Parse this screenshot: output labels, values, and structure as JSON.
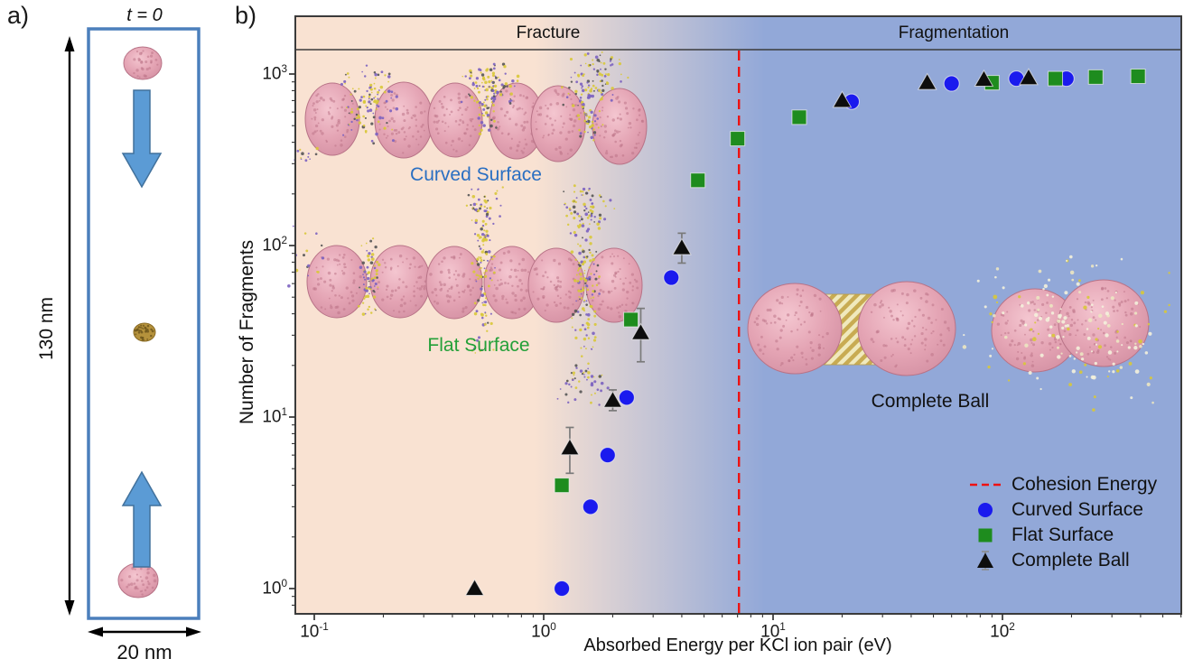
{
  "panel_a": {
    "label": "a)",
    "time_label": "t = 0",
    "height_label": "130 nm",
    "width_label": "20 nm"
  },
  "panel_b": {
    "label": "b)",
    "regions": {
      "fracture": "Fracture",
      "fragmentation": "Fragmentation"
    },
    "annotations": {
      "curved": {
        "text": "Curved Surface",
        "color": "#2a6fc2"
      },
      "flat": {
        "text": "Flat Surface",
        "color": "#23a038"
      },
      "ball": {
        "text": "Complete Ball",
        "color": "#111111"
      }
    }
  },
  "legend": {
    "items": [
      {
        "label": "Cohesion Energy",
        "marker": "dashed-line",
        "color": "#ee1111"
      },
      {
        "label": "Curved Surface",
        "marker": "circle",
        "color": "#1a1aee"
      },
      {
        "label": "Flat Surface",
        "marker": "square",
        "color": "#1e8c1e"
      },
      {
        "label": "Complete Ball",
        "marker": "triangle",
        "color": "#0d0d0d"
      }
    ]
  },
  "chart_data": {
    "type": "scatter",
    "x_scale": "log",
    "y_scale": "log",
    "xlabel": "Absorbed Energy per KCl ion pair (eV)",
    "ylabel": "Number of Fragments",
    "xlim": [
      0.083,
      600
    ],
    "ylim": [
      0.75,
      1390
    ],
    "x_tick_exponents": [
      -1,
      0,
      1,
      2
    ],
    "y_tick_exponents": [
      0,
      1,
      2,
      3
    ],
    "grid": false,
    "legend_position": "lower right",
    "regions": [
      {
        "label": "Fracture",
        "side": "left",
        "color": "#f9e2d2"
      },
      {
        "label": "Fragmentation",
        "side": "right",
        "color": "#92a8d8"
      }
    ],
    "cohesion_line": {
      "x": 7.1,
      "style": "dashed",
      "color": "#ee1111",
      "label": "Cohesion Energy"
    },
    "series": [
      {
        "name": "Curved Surface",
        "marker": "circle",
        "color": "#1a1aee",
        "points": [
          [
            1.2,
            1
          ],
          [
            1.6,
            3
          ],
          [
            1.9,
            6
          ],
          [
            2.3,
            13
          ],
          [
            3.6,
            65
          ],
          [
            22,
            690
          ],
          [
            60,
            880
          ],
          [
            115,
            940
          ],
          [
            190,
            940
          ]
        ]
      },
      {
        "name": "Flat Surface",
        "marker": "square",
        "color": "#1e8c1e",
        "points": [
          [
            1.2,
            4
          ],
          [
            2.4,
            37
          ],
          [
            4.7,
            240
          ],
          [
            7.0,
            420
          ],
          [
            13,
            560
          ],
          [
            90,
            890
          ],
          [
            170,
            940
          ],
          [
            255,
            960
          ],
          [
            390,
            970
          ]
        ]
      },
      {
        "name": "Complete Ball",
        "marker": "triangle",
        "color": "#0d0d0d",
        "points": [
          [
            0.5,
            1
          ],
          [
            1.3,
            6.6
          ],
          [
            2.0,
            12.5
          ],
          [
            2.65,
            31
          ],
          [
            4.0,
            97
          ],
          [
            20,
            700
          ],
          [
            47,
            890
          ],
          [
            83,
            930
          ],
          [
            130,
            950
          ]
        ],
        "yerr": [
          null,
          [
            4.7,
            8.7
          ],
          [
            10.9,
            14.4
          ],
          [
            21,
            43
          ],
          [
            79,
            118
          ],
          null,
          null,
          null,
          null
        ]
      }
    ]
  }
}
